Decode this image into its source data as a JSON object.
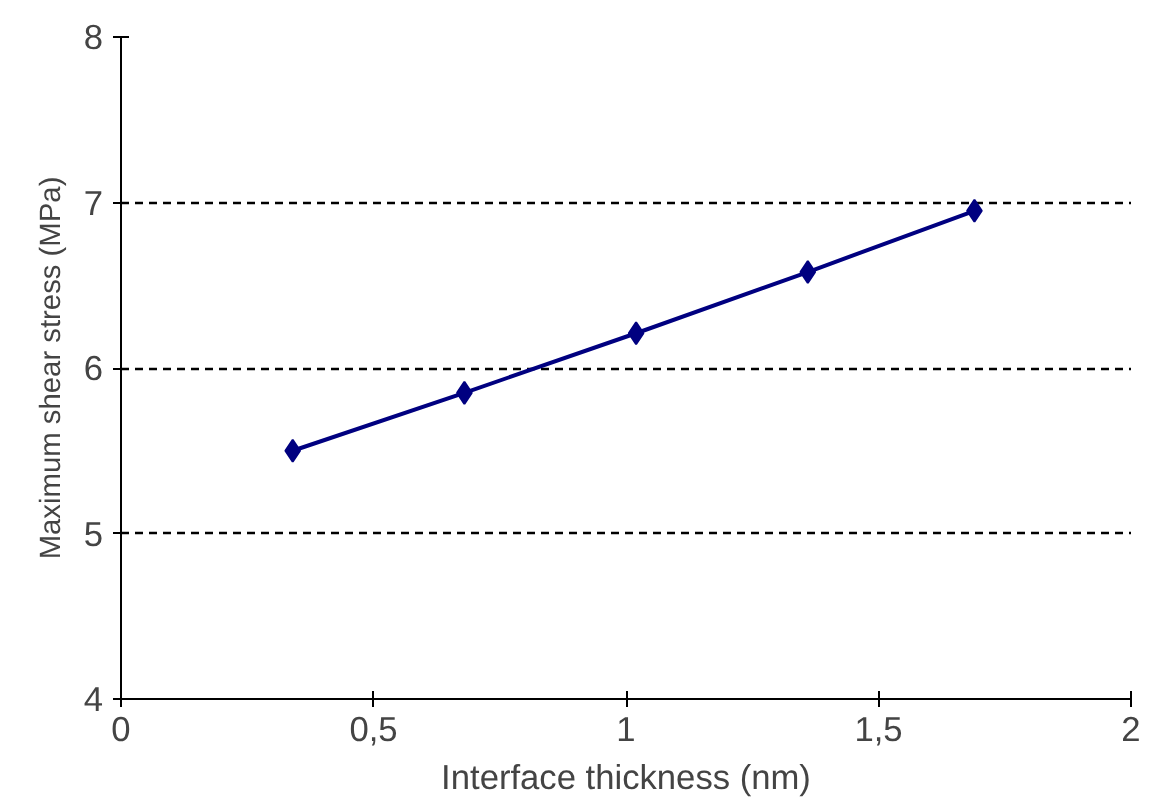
{
  "chart_data": {
    "type": "line",
    "xlabel": "Interface thickness (nm)",
    "ylabel": "Maximum shear stress (MPa)",
    "x": [
      0.34,
      0.68,
      1.02,
      1.36,
      1.69
    ],
    "series": [
      {
        "color": "#000080",
        "values": [
          5.5,
          5.85,
          6.21,
          6.58,
          6.95
        ]
      }
    ],
    "xlim": [
      0,
      2
    ],
    "xticks": [
      0,
      {
        "value": 0.5,
        "label": "0,5"
      },
      1,
      {
        "value": 1.5,
        "label": "1,5"
      },
      2
    ],
    "ylim": [
      4,
      8
    ],
    "yticks": [
      4,
      5,
      6,
      7,
      8
    ],
    "grid": "y",
    "marker": "diamond",
    "line_style": "solid"
  }
}
